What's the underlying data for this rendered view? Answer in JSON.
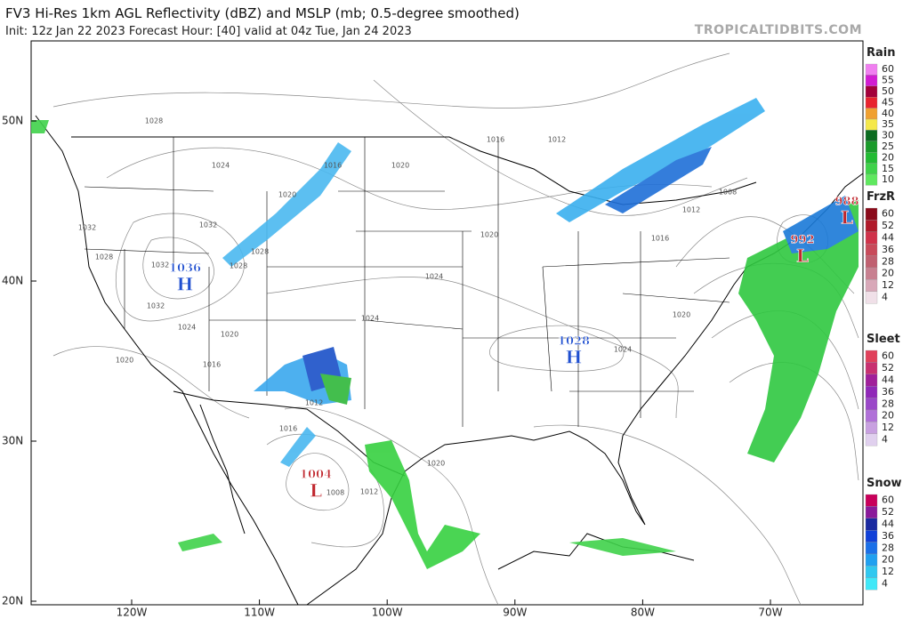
{
  "header": {
    "title": "FV3 Hi-Res 1km AGL Reflectivity (dBZ) and MSLP (mb; 0.5-degree smoothed)",
    "subtitle": "Init: 12z Jan 22 2023   Forecast Hour: [40]   valid at 04z Tue, Jan 24 2023",
    "brand": "TROPICALTIDBITS.COM"
  },
  "lat_labels": [
    "50N",
    "40N",
    "30N",
    "20N"
  ],
  "lon_labels": [
    "120W",
    "110W",
    "100W",
    "90W",
    "80W",
    "70W"
  ],
  "pressure_centers": [
    {
      "value": "1036",
      "letter": "H",
      "color": "#1f4fd0"
    },
    {
      "value": "1028",
      "letter": "H",
      "color": "#1f4fd0"
    },
    {
      "value": "1004",
      "letter": "L",
      "color": "#c0262d"
    },
    {
      "value": "992",
      "letter": "L",
      "color": "#c0262d"
    },
    {
      "value": "988",
      "letter": "L",
      "color": "#c0262d"
    }
  ],
  "isobar_labels": [
    "1028",
    "1024",
    "1016",
    "1020",
    "1016",
    "1012",
    "1020",
    "1024",
    "1024",
    "1024",
    "1016",
    "1012",
    "1008",
    "1020",
    "1032",
    "1032",
    "1028",
    "1032",
    "1028",
    "1028",
    "1024",
    "1020",
    "1016",
    "1020",
    "1032",
    "1012",
    "1016",
    "1020",
    "1008",
    "1012",
    "1020"
  ],
  "legends": [
    {
      "title": "Rain",
      "ticks": [
        "60",
        "55",
        "50",
        "45",
        "40",
        "35",
        "30",
        "25",
        "20",
        "15",
        "10"
      ],
      "colors": [
        "#f07ff0",
        "#d21cd2",
        "#a3003a",
        "#e8232e",
        "#f0a030",
        "#f5e84a",
        "#0b6b20",
        "#1a9a2a",
        "#22bb33",
        "#3fd24a",
        "#5fe85f"
      ]
    },
    {
      "title": "FrzR",
      "ticks": [
        "60",
        "52",
        "44",
        "36",
        "28",
        "20",
        "12",
        "4"
      ],
      "colors": [
        "#8a0a1a",
        "#b01a2a",
        "#d0324a",
        "#c84a5a",
        "#c06070",
        "#c88090",
        "#d8a8b8",
        "#f0e0e8"
      ]
    },
    {
      "title": "Sleet",
      "ticks": [
        "60",
        "52",
        "44",
        "36",
        "28",
        "20",
        "12",
        "4"
      ],
      "colors": [
        "#e0405a",
        "#c83070",
        "#a0209a",
        "#9028b8",
        "#9a48c8",
        "#b070d8",
        "#c8a0e0",
        "#e0d0ee"
      ]
    },
    {
      "title": "Snow",
      "ticks": [
        "60",
        "52",
        "44",
        "36",
        "28",
        "20",
        "12",
        "4"
      ],
      "colors": [
        "#c8005a",
        "#8a1a9a",
        "#1a2aa0",
        "#1040d8",
        "#1a70e8",
        "#20a0f0",
        "#30c8f0",
        "#40e8f8"
      ]
    }
  ]
}
